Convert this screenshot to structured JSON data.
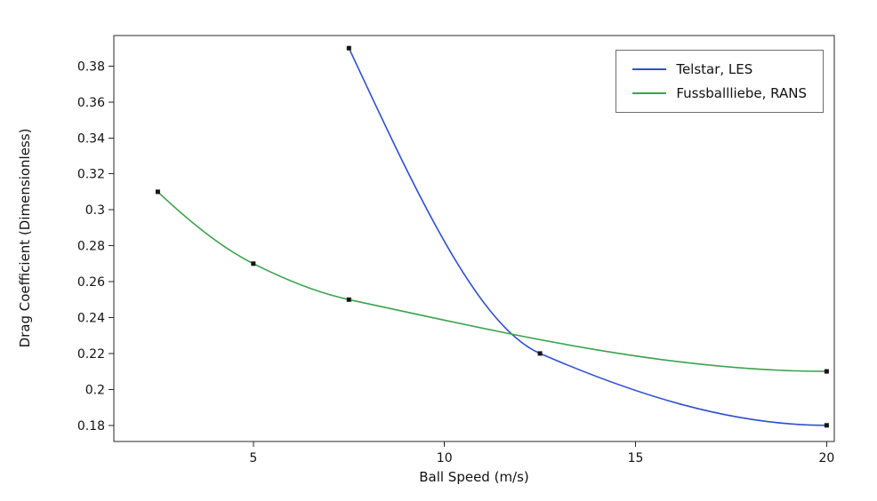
{
  "chart_data": {
    "type": "line",
    "xlabel": "Ball Speed (m/s)",
    "ylabel": "Drag Coefficient (Dimensionless)",
    "xlim": [
      1.35,
      20.2
    ],
    "ylim": [
      0.171,
      0.397
    ],
    "xticks": [
      5,
      10,
      15,
      20
    ],
    "xtick_labels": [
      "5",
      "10",
      "15",
      "20"
    ],
    "yticks": [
      0.18,
      0.2,
      0.22,
      0.24,
      0.26,
      0.28,
      0.3,
      0.32,
      0.34,
      0.36,
      0.38
    ],
    "ytick_labels": [
      "0.18",
      "0.2",
      "0.22",
      "0.24",
      "0.26",
      "0.28",
      "0.3",
      "0.32",
      "0.34",
      "0.36",
      "0.38"
    ],
    "grid": false,
    "legend_position": "top-right",
    "marker": "square",
    "marker_color": "#151515",
    "frame_color": "#262626",
    "series": [
      {
        "name": "Telstar, LES",
        "color": "#2e4fcd",
        "x": [
          7.5,
          12.5,
          20
        ],
        "y": [
          0.39,
          0.22,
          0.18
        ]
      },
      {
        "name": "Fussballliebe, RANS",
        "color": "#3ba24c",
        "x": [
          2.5,
          5,
          7.5,
          20
        ],
        "y": [
          0.31,
          0.27,
          0.25,
          0.21
        ]
      }
    ]
  }
}
